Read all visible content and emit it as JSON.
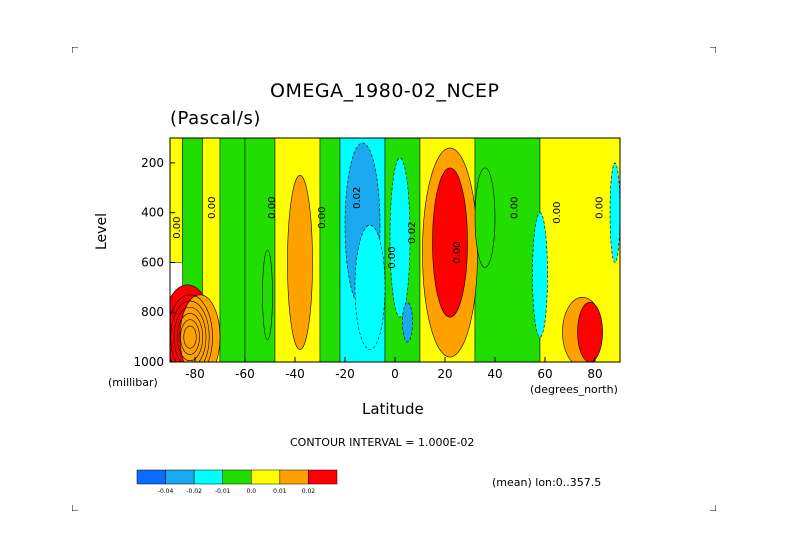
{
  "chart_data": {
    "type": "heatmap",
    "title": "OMEGA_1980-02_NCEP",
    "units": "(Pascal/s)",
    "xlabel": "Latitude",
    "xunit": "(degrees_north)",
    "ylabel": "Level",
    "yunit": "(millibar)",
    "xlim": [
      -90,
      90
    ],
    "ylim": [
      1000,
      100
    ],
    "xticks": [
      -80,
      -60,
      -40,
      -20,
      0,
      20,
      40,
      60,
      80
    ],
    "yticks": [
      200,
      400,
      600,
      800,
      1000
    ],
    "contour_interval_text": "CONTOUR INTERVAL = 1.000E-02",
    "mean_text": "(mean) lon:0..357.5",
    "contour_labels": [
      "0.00",
      "0.00",
      "0.00",
      "0.00",
      "0.02",
      "0.00",
      "0.02",
      "0.00",
      "0.00",
      "0.00",
      "0.00"
    ],
    "legend": {
      "labels": [
        "-0.04",
        "-0.02",
        "-0.01",
        "0.0",
        "0.01",
        "0.02"
      ],
      "colors": [
        "#0a6cff",
        "#1aa8ee",
        "#00ffff",
        "#22dd00",
        "#ffff00",
        "#ffa200",
        "#ff0000"
      ]
    },
    "bands": [
      {
        "x0": -90,
        "x1": -85,
        "p0": 100,
        "p1": 600,
        "level": 4
      },
      {
        "x0": -85,
        "x1": -77,
        "p0": 100,
        "p1": 1000,
        "level": 3
      },
      {
        "x0": -77,
        "x1": -70,
        "p0": 100,
        "p1": 1000,
        "level": 4
      },
      {
        "x0": -70,
        "x1": -60,
        "p0": 100,
        "p1": 1000,
        "level": 3
      },
      {
        "x0": -60,
        "x1": -48,
        "p0": 100,
        "p1": 1000,
        "level": 3
      },
      {
        "x0": -48,
        "x1": -30,
        "p0": 100,
        "p1": 1000,
        "level": 4
      },
      {
        "x0": -30,
        "x1": -22,
        "p0": 100,
        "p1": 1000,
        "level": 3
      },
      {
        "x0": -22,
        "x1": -4,
        "p0": 100,
        "p1": 1000,
        "level": 2
      },
      {
        "x0": -4,
        "x1": 10,
        "p0": 100,
        "p1": 1000,
        "level": 3
      },
      {
        "x0": 10,
        "x1": 32,
        "p0": 100,
        "p1": 1000,
        "level": 4
      },
      {
        "x0": 32,
        "x1": 58,
        "p0": 100,
        "p1": 1000,
        "level": 3
      },
      {
        "x0": 58,
        "x1": 90,
        "p0": 100,
        "p1": 1000,
        "level": 4
      }
    ],
    "blobs": [
      {
        "cx": -83,
        "cp": 880,
        "rx": 10,
        "rp": 190,
        "level": 6
      },
      {
        "cx": -78,
        "cp": 900,
        "rx": 8,
        "rp": 170,
        "level": 5
      },
      {
        "cx": -38,
        "cp": 600,
        "rx": 5,
        "rp": 350,
        "level": 5
      },
      {
        "cx": -51,
        "cp": 730,
        "rx": 2,
        "rp": 180,
        "level": 3
      },
      {
        "cx": -13,
        "cp": 450,
        "rx": 7,
        "rp": 330,
        "level": 1
      },
      {
        "cx": -10,
        "cp": 700,
        "rx": 6,
        "rp": 250,
        "level": 2
      },
      {
        "cx": 2,
        "cp": 500,
        "rx": 4,
        "rp": 320,
        "level": 2
      },
      {
        "cx": 5,
        "cp": 840,
        "rx": 2,
        "rp": 80,
        "level": 1
      },
      {
        "cx": 22,
        "cp": 560,
        "rx": 11,
        "rp": 420,
        "level": 5
      },
      {
        "cx": 22,
        "cp": 520,
        "rx": 7,
        "rp": 300,
        "level": 6
      },
      {
        "cx": 36,
        "cp": 420,
        "rx": 4,
        "rp": 200,
        "level": 3
      },
      {
        "cx": 58,
        "cp": 650,
        "rx": 3,
        "rp": 250,
        "level": 2
      },
      {
        "cx": 75,
        "cp": 880,
        "rx": 8,
        "rp": 140,
        "level": 5
      },
      {
        "cx": 78,
        "cp": 880,
        "rx": 5,
        "rp": 120,
        "level": 6
      },
      {
        "cx": 88,
        "cp": 400,
        "rx": 2,
        "rp": 200,
        "level": 2
      }
    ]
  }
}
